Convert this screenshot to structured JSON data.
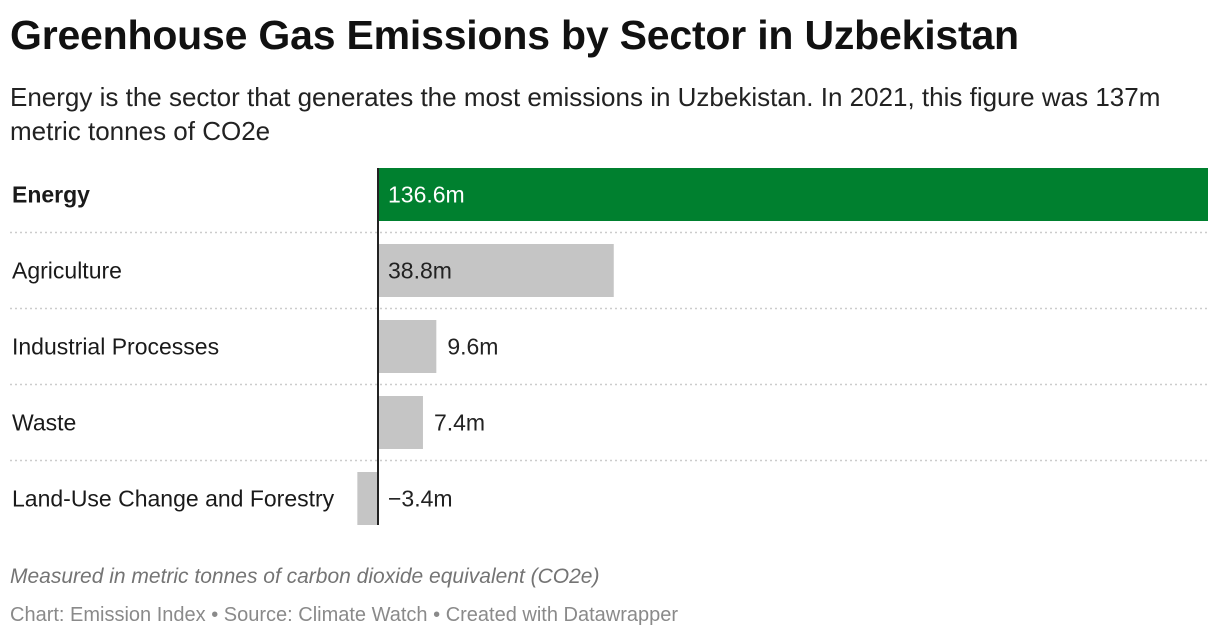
{
  "title": "Greenhouse Gas Emissions by Sector in Uzbekistan",
  "subtitle": "Energy is the sector that generates the most emissions in Uzbekistan. In 2021, this figure was 137m metric tonnes of CO2e",
  "notes": "Measured in metric tonnes of carbon dioxide equivalent (CO2e)",
  "footer": {
    "chart_credit": "Chart: Emission Index",
    "separator": "•",
    "source": "Source: Climate Watch",
    "created_with": "Created with Datawrapper"
  },
  "colors": {
    "highlight": "#00802f",
    "default_bar": "#c5c5c5",
    "axis": "#222222",
    "row_divider": "#cccccc"
  },
  "chart_data": {
    "type": "bar",
    "orientation": "horizontal",
    "categories": [
      "Energy",
      "Agriculture",
      "Industrial Processes",
      "Waste",
      "Land-Use Change and Forestry"
    ],
    "values": [
      136.6,
      38.8,
      9.6,
      7.4,
      -3.4
    ],
    "value_labels": [
      "136.6m",
      "38.8m",
      "9.6m",
      "7.4m",
      "−3.4m"
    ],
    "highlighted": "Energy",
    "xlim": [
      -3.4,
      136.6
    ],
    "grid": false,
    "legend": "none"
  }
}
